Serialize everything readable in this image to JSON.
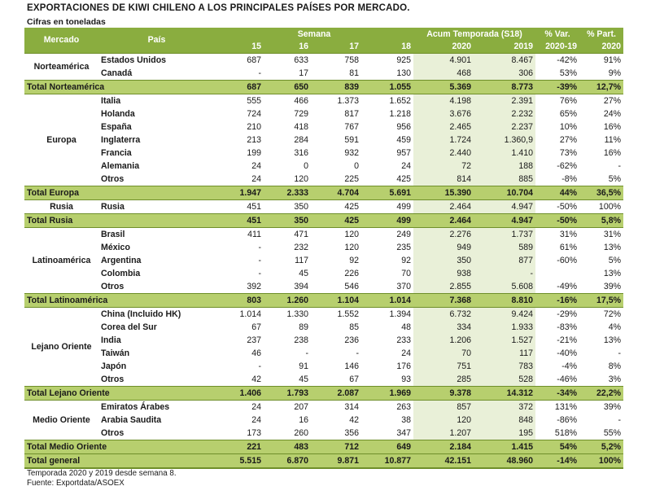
{
  "title": "EXPORTACIONES DE KIWI CHILENO A LOS PRINCIPALES PAÍSES POR MERCADO.",
  "subtitle": "Cifras en toneladas",
  "headers": {
    "mercado": "Mercado",
    "pais": "País",
    "semana": "Semana",
    "acum": "Acum Temporada (S18)",
    "var": "% Var.",
    "part": "% Part.",
    "w15": "15",
    "w16": "16",
    "w17": "17",
    "w18": "18",
    "y2020": "2020",
    "y2019": "2019",
    "var_sub": "2020-19",
    "part_sub": "2020"
  },
  "groups": [
    {
      "mercado": "Norteamérica",
      "rows": [
        {
          "pais": "Estados Unidos",
          "w15": "687",
          "w16": "633",
          "w17": "758",
          "w18": "925",
          "a2020": "4.901",
          "a2019": "8.467",
          "var": "-42%",
          "part": "91%"
        },
        {
          "pais": "Canadá",
          "w15": "-",
          "w16": "17",
          "w17": "81",
          "w18": "130",
          "a2020": "468",
          "a2019": "306",
          "var": "53%",
          "part": "9%"
        }
      ],
      "total": {
        "label": "Total Norteamérica",
        "w15": "687",
        "w16": "650",
        "w17": "839",
        "w18": "1.055",
        "a2020": "5.369",
        "a2019": "8.773",
        "var": "-39%",
        "part": "12,7%"
      }
    },
    {
      "mercado": "Europa",
      "rows": [
        {
          "pais": "Italia",
          "w15": "555",
          "w16": "466",
          "w17": "1.373",
          "w18": "1.652",
          "a2020": "4.198",
          "a2019": "2.391",
          "var": "76%",
          "part": "27%"
        },
        {
          "pais": "Holanda",
          "w15": "724",
          "w16": "729",
          "w17": "817",
          "w18": "1.218",
          "a2020": "3.676",
          "a2019": "2.232",
          "var": "65%",
          "part": "24%"
        },
        {
          "pais": "España",
          "w15": "210",
          "w16": "418",
          "w17": "767",
          "w18": "956",
          "a2020": "2.465",
          "a2019": "2.237",
          "var": "10%",
          "part": "16%"
        },
        {
          "pais": "Inglaterra",
          "w15": "213",
          "w16": "284",
          "w17": "591",
          "w18": "459",
          "a2020": "1.724",
          "a2019": "1.360,9",
          "var": "27%",
          "part": "11%"
        },
        {
          "pais": "Francia",
          "w15": "199",
          "w16": "316",
          "w17": "932",
          "w18": "957",
          "a2020": "2.440",
          "a2019": "1.410",
          "var": "73%",
          "part": "16%"
        },
        {
          "pais": "Alemania",
          "w15": "24",
          "w16": "0",
          "w17": "0",
          "w18": "24",
          "a2020": "72",
          "a2019": "188",
          "var": "-62%",
          "part": "-"
        },
        {
          "pais": "Otros",
          "w15": "24",
          "w16": "120",
          "w17": "225",
          "w18": "425",
          "a2020": "814",
          "a2019": "885",
          "var": "-8%",
          "part": "5%"
        }
      ],
      "total": {
        "label": "Total Europa",
        "w15": "1.947",
        "w16": "2.333",
        "w17": "4.704",
        "w18": "5.691",
        "a2020": "15.390",
        "a2019": "10.704",
        "var": "44%",
        "part": "36,5%"
      }
    },
    {
      "mercado": "Rusia",
      "rows": [
        {
          "pais": "Rusia",
          "w15": "451",
          "w16": "350",
          "w17": "425",
          "w18": "499",
          "a2020": "2.464",
          "a2019": "4.947",
          "var": "-50%",
          "part": "100%"
        }
      ],
      "total": {
        "label": "Total Rusia",
        "w15": "451",
        "w16": "350",
        "w17": "425",
        "w18": "499",
        "a2020": "2.464",
        "a2019": "4.947",
        "var": "-50%",
        "part": "5,8%"
      }
    },
    {
      "mercado": "Latinoamérica",
      "rows": [
        {
          "pais": "Brasil",
          "w15": "411",
          "w16": "471",
          "w17": "120",
          "w18": "249",
          "a2020": "2.276",
          "a2019": "1.737",
          "var": "31%",
          "part": "31%"
        },
        {
          "pais": "México",
          "w15": "-",
          "w16": "232",
          "w17": "120",
          "w18": "235",
          "a2020": "949",
          "a2019": "589",
          "var": "61%",
          "part": "13%"
        },
        {
          "pais": "Argentina",
          "w15": "-",
          "w16": "117",
          "w17": "92",
          "w18": "92",
          "a2020": "350",
          "a2019": "877",
          "var": "-60%",
          "part": "5%"
        },
        {
          "pais": "Colombia",
          "w15": "-",
          "w16": "45",
          "w17": "226",
          "w18": "70",
          "a2020": "938",
          "a2019": "-",
          "var": "",
          "part": "13%"
        },
        {
          "pais": "Otros",
          "w15": "392",
          "w16": "394",
          "w17": "546",
          "w18": "370",
          "a2020": "2.855",
          "a2019": "5.608",
          "var": "-49%",
          "part": "39%"
        }
      ],
      "total": {
        "label": "Total Latinoamérica",
        "w15": "803",
        "w16": "1.260",
        "w17": "1.104",
        "w18": "1.014",
        "a2020": "7.368",
        "a2019": "8.810",
        "var": "-16%",
        "part": "17,5%"
      }
    },
    {
      "mercado": "Lejano Oriente",
      "rows": [
        {
          "pais": "China (Incluido HK)",
          "w15": "1.014",
          "w16": "1.330",
          "w17": "1.552",
          "w18": "1.394",
          "a2020": "6.732",
          "a2019": "9.424",
          "var": "-29%",
          "part": "72%"
        },
        {
          "pais": "Corea del Sur",
          "w15": "67",
          "w16": "89",
          "w17": "85",
          "w18": "48",
          "a2020": "334",
          "a2019": "1.933",
          "var": "-83%",
          "part": "4%"
        },
        {
          "pais": "India",
          "w15": "237",
          "w16": "238",
          "w17": "236",
          "w18": "233",
          "a2020": "1.206",
          "a2019": "1.527",
          "var": "-21%",
          "part": "13%"
        },
        {
          "pais": "Taiwán",
          "w15": "46",
          "w16": "-",
          "w17": "-",
          "w18": "24",
          "a2020": "70",
          "a2019": "117",
          "var": "-40%",
          "part": "-"
        },
        {
          "pais": "Japón",
          "w15": "-",
          "w16": "91",
          "w17": "146",
          "w18": "176",
          "a2020": "751",
          "a2019": "783",
          "var": "-4%",
          "part": "8%"
        },
        {
          "pais": "Otros",
          "w15": "42",
          "w16": "45",
          "w17": "67",
          "w18": "93",
          "a2020": "285",
          "a2019": "528",
          "var": "-46%",
          "part": "3%"
        }
      ],
      "total": {
        "label": "Total Lejano Oriente",
        "w15": "1.406",
        "w16": "1.793",
        "w17": "2.087",
        "w18": "1.969",
        "a2020": "9.378",
        "a2019": "14.312",
        "var": "-34%",
        "part": "22,2%"
      }
    },
    {
      "mercado": "Medio Oriente",
      "rows": [
        {
          "pais": "Emiratos Árabes",
          "w15": "24",
          "w16": "207",
          "w17": "314",
          "w18": "263",
          "a2020": "857",
          "a2019": "372",
          "var": "131%",
          "part": "39%"
        },
        {
          "pais": "Arabia Saudita",
          "w15": "24",
          "w16": "16",
          "w17": "42",
          "w18": "38",
          "a2020": "120",
          "a2019": "848",
          "var": "-86%",
          "part": "-"
        },
        {
          "pais": "Otros",
          "w15": "173",
          "w16": "260",
          "w17": "356",
          "w18": "347",
          "a2020": "1.207",
          "a2019": "195",
          "var": "518%",
          "part": "55%"
        }
      ],
      "total": {
        "label": "Total Medio Oriente",
        "w15": "221",
        "w16": "483",
        "w17": "712",
        "w18": "649",
        "a2020": "2.184",
        "a2019": "1.415",
        "var": "54%",
        "part": "5,2%"
      }
    }
  ],
  "grand_total": {
    "label": "Total general",
    "w15": "5.515",
    "w16": "6.870",
    "w17": "9.871",
    "w18": "10.877",
    "a2020": "42.151",
    "a2019": "48.960",
    "var": "-14%",
    "part": "100%"
  },
  "notes": [
    "Temporada 2020 y 2019 desde semana 8.",
    "Fuente: Exportdata/ASOEX"
  ],
  "colors": {
    "header": "#8aad3f",
    "total_row": "#b7cf6e",
    "acum_col": "#e9f0d8"
  }
}
